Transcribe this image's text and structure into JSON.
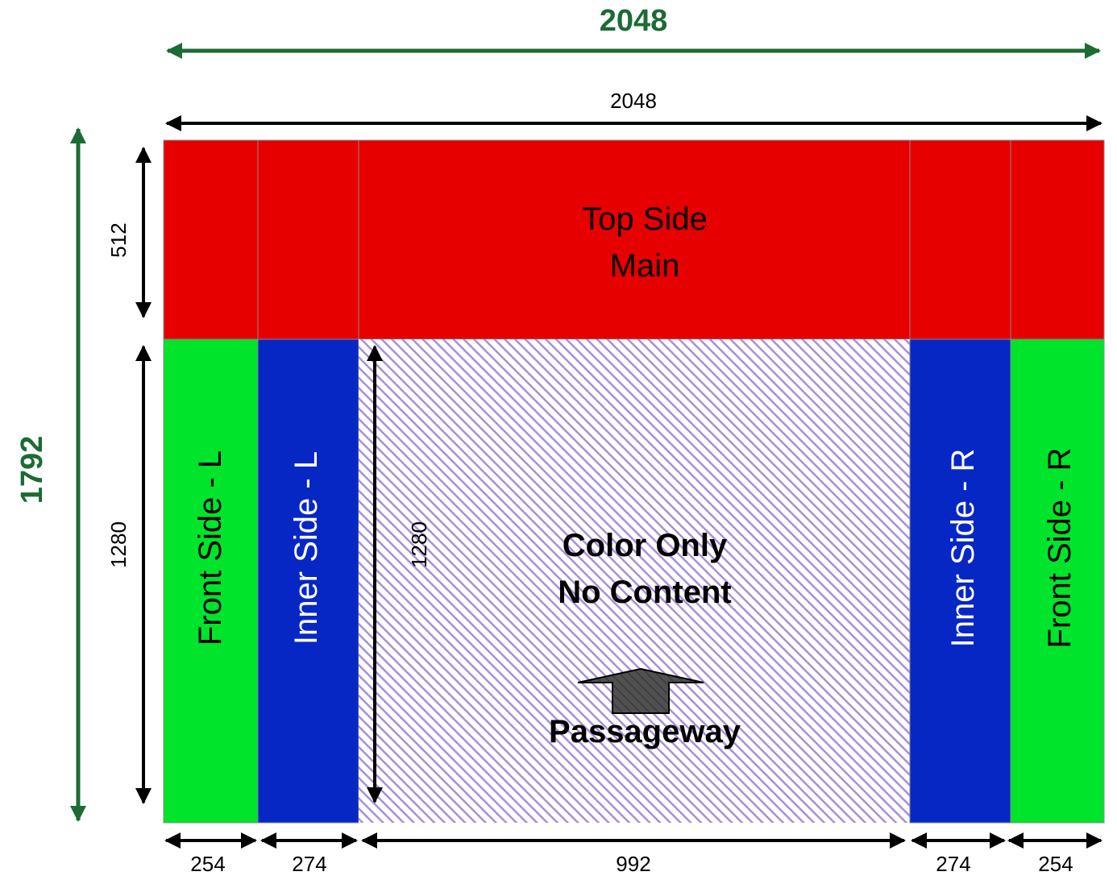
{
  "dimensions": {
    "overall_width": "2048",
    "overall_height": "1792",
    "inner_width": "2048",
    "top_height": "512",
    "side_height": "1280",
    "center_height": "1280",
    "bottom": [
      "254",
      "274",
      "992",
      "274",
      "254"
    ]
  },
  "panels": {
    "top_line1": "Top Side",
    "top_line2": "Main",
    "front_left": "Front Side - L",
    "inner_left": "Inner Side - L",
    "center_line1": "Color Only",
    "center_line2": "No Content",
    "passageway": "Passageway",
    "inner_right": "Inner Side - R",
    "front_right": "Front Side - R"
  },
  "colors": {
    "red": "#e60000",
    "green": "#00e42b",
    "blue": "#0727c5",
    "hatch": "#a98fd6",
    "dim_green": "#1c6b34"
  }
}
